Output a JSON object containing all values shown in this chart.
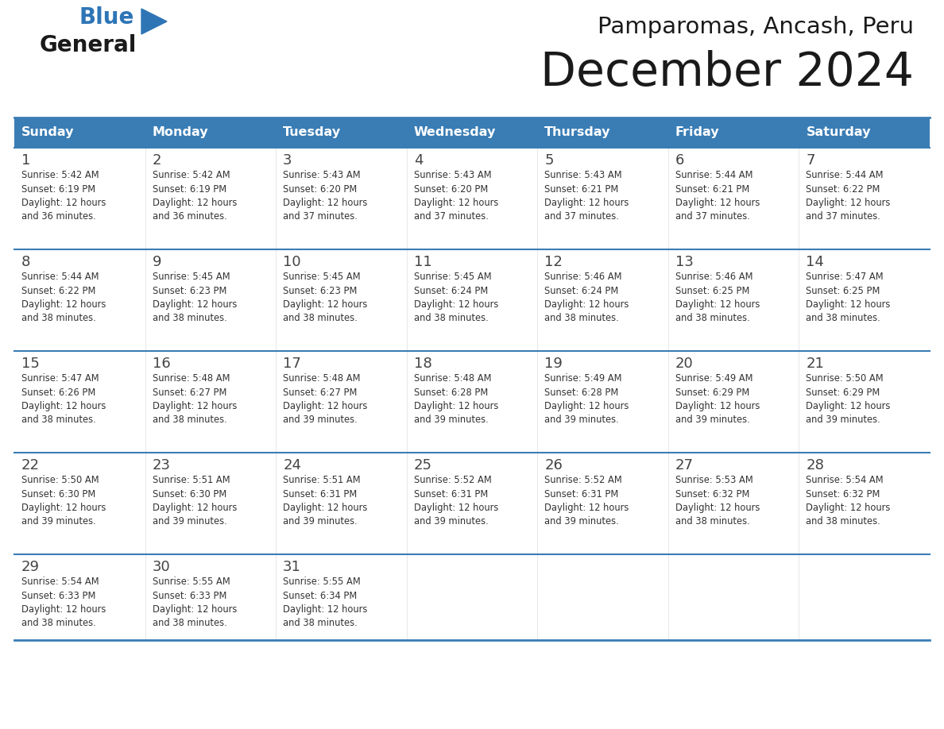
{
  "title": "December 2024",
  "subtitle": "Pamparomas, Ancash, Peru",
  "days_of_week": [
    "Sunday",
    "Monday",
    "Tuesday",
    "Wednesday",
    "Thursday",
    "Friday",
    "Saturday"
  ],
  "header_bg": "#3a7db5",
  "header_text": "#ffffff",
  "row_bg": "#ffffff",
  "border_color": "#3a7db5",
  "cell_text_color": "#333333",
  "logo_black": "#1a1a1a",
  "logo_blue": "#2e75b6",
  "triangle_color": "#2e75b6",
  "calendar_data": [
    [
      {
        "day": 1,
        "sunrise": "5:42 AM",
        "sunset": "6:19 PM",
        "daylight": "12 hours",
        "daylight2": "and 36 minutes."
      },
      {
        "day": 2,
        "sunrise": "5:42 AM",
        "sunset": "6:19 PM",
        "daylight": "12 hours",
        "daylight2": "and 36 minutes."
      },
      {
        "day": 3,
        "sunrise": "5:43 AM",
        "sunset": "6:20 PM",
        "daylight": "12 hours",
        "daylight2": "and 37 minutes."
      },
      {
        "day": 4,
        "sunrise": "5:43 AM",
        "sunset": "6:20 PM",
        "daylight": "12 hours",
        "daylight2": "and 37 minutes."
      },
      {
        "day": 5,
        "sunrise": "5:43 AM",
        "sunset": "6:21 PM",
        "daylight": "12 hours",
        "daylight2": "and 37 minutes."
      },
      {
        "day": 6,
        "sunrise": "5:44 AM",
        "sunset": "6:21 PM",
        "daylight": "12 hours",
        "daylight2": "and 37 minutes."
      },
      {
        "day": 7,
        "sunrise": "5:44 AM",
        "sunset": "6:22 PM",
        "daylight": "12 hours",
        "daylight2": "and 37 minutes."
      }
    ],
    [
      {
        "day": 8,
        "sunrise": "5:44 AM",
        "sunset": "6:22 PM",
        "daylight": "12 hours",
        "daylight2": "and 38 minutes."
      },
      {
        "day": 9,
        "sunrise": "5:45 AM",
        "sunset": "6:23 PM",
        "daylight": "12 hours",
        "daylight2": "and 38 minutes."
      },
      {
        "day": 10,
        "sunrise": "5:45 AM",
        "sunset": "6:23 PM",
        "daylight": "12 hours",
        "daylight2": "and 38 minutes."
      },
      {
        "day": 11,
        "sunrise": "5:45 AM",
        "sunset": "6:24 PM",
        "daylight": "12 hours",
        "daylight2": "and 38 minutes."
      },
      {
        "day": 12,
        "sunrise": "5:46 AM",
        "sunset": "6:24 PM",
        "daylight": "12 hours",
        "daylight2": "and 38 minutes."
      },
      {
        "day": 13,
        "sunrise": "5:46 AM",
        "sunset": "6:25 PM",
        "daylight": "12 hours",
        "daylight2": "and 38 minutes."
      },
      {
        "day": 14,
        "sunrise": "5:47 AM",
        "sunset": "6:25 PM",
        "daylight": "12 hours",
        "daylight2": "and 38 minutes."
      }
    ],
    [
      {
        "day": 15,
        "sunrise": "5:47 AM",
        "sunset": "6:26 PM",
        "daylight": "12 hours",
        "daylight2": "and 38 minutes."
      },
      {
        "day": 16,
        "sunrise": "5:48 AM",
        "sunset": "6:27 PM",
        "daylight": "12 hours",
        "daylight2": "and 38 minutes."
      },
      {
        "day": 17,
        "sunrise": "5:48 AM",
        "sunset": "6:27 PM",
        "daylight": "12 hours",
        "daylight2": "and 39 minutes."
      },
      {
        "day": 18,
        "sunrise": "5:48 AM",
        "sunset": "6:28 PM",
        "daylight": "12 hours",
        "daylight2": "and 39 minutes."
      },
      {
        "day": 19,
        "sunrise": "5:49 AM",
        "sunset": "6:28 PM",
        "daylight": "12 hours",
        "daylight2": "and 39 minutes."
      },
      {
        "day": 20,
        "sunrise": "5:49 AM",
        "sunset": "6:29 PM",
        "daylight": "12 hours",
        "daylight2": "and 39 minutes."
      },
      {
        "day": 21,
        "sunrise": "5:50 AM",
        "sunset": "6:29 PM",
        "daylight": "12 hours",
        "daylight2": "and 39 minutes."
      }
    ],
    [
      {
        "day": 22,
        "sunrise": "5:50 AM",
        "sunset": "6:30 PM",
        "daylight": "12 hours",
        "daylight2": "and 39 minutes."
      },
      {
        "day": 23,
        "sunrise": "5:51 AM",
        "sunset": "6:30 PM",
        "daylight": "12 hours",
        "daylight2": "and 39 minutes."
      },
      {
        "day": 24,
        "sunrise": "5:51 AM",
        "sunset": "6:31 PM",
        "daylight": "12 hours",
        "daylight2": "and 39 minutes."
      },
      {
        "day": 25,
        "sunrise": "5:52 AM",
        "sunset": "6:31 PM",
        "daylight": "12 hours",
        "daylight2": "and 39 minutes."
      },
      {
        "day": 26,
        "sunrise": "5:52 AM",
        "sunset": "6:31 PM",
        "daylight": "12 hours",
        "daylight2": "and 39 minutes."
      },
      {
        "day": 27,
        "sunrise": "5:53 AM",
        "sunset": "6:32 PM",
        "daylight": "12 hours",
        "daylight2": "and 38 minutes."
      },
      {
        "day": 28,
        "sunrise": "5:54 AM",
        "sunset": "6:32 PM",
        "daylight": "12 hours",
        "daylight2": "and 38 minutes."
      }
    ],
    [
      {
        "day": 29,
        "sunrise": "5:54 AM",
        "sunset": "6:33 PM",
        "daylight": "12 hours",
        "daylight2": "and 38 minutes."
      },
      {
        "day": 30,
        "sunrise": "5:55 AM",
        "sunset": "6:33 PM",
        "daylight": "12 hours",
        "daylight2": "and 38 minutes."
      },
      {
        "day": 31,
        "sunrise": "5:55 AM",
        "sunset": "6:34 PM",
        "daylight": "12 hours",
        "daylight2": "and 38 minutes."
      },
      null,
      null,
      null,
      null
    ]
  ]
}
